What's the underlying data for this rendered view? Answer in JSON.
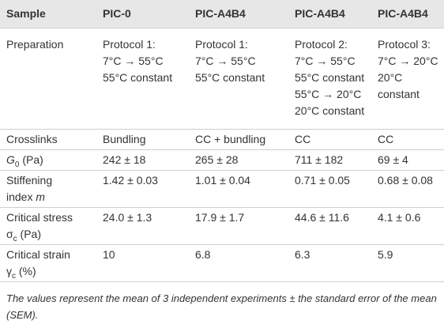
{
  "table": {
    "header": [
      "Sample",
      "PIC-0",
      "PIC-A4B4",
      "PIC-A4B4",
      "PIC-A4B4"
    ],
    "rows": [
      {
        "label": [
          "Preparation"
        ],
        "cells": [
          [
            "Protocol 1:",
            "7°C → 55°C",
            "55°C constant"
          ],
          [
            "Protocol 1:",
            "7°C → 55°C",
            "55°C constant"
          ],
          [
            "Protocol 2:",
            "7°C → 55°C",
            "55°C constant",
            "55°C → 20°C",
            "20°C constant"
          ],
          [
            "Protocol 3:",
            "7°C → 20°C",
            "20°C constant"
          ]
        ]
      },
      {
        "label": [
          "Crosslinks"
        ],
        "cells": [
          [
            "Bundling"
          ],
          [
            "CC + bundling"
          ],
          [
            "CC"
          ],
          [
            "CC"
          ]
        ]
      },
      {
        "label": [
          "G",
          "0",
          " (Pa)"
        ],
        "cells": [
          [
            "242 ± 18"
          ],
          [
            "265 ± 28"
          ],
          [
            "711 ± 182"
          ],
          [
            "69 ± 4"
          ]
        ]
      },
      {
        "label": [
          "Stiffening",
          "index ",
          "m"
        ],
        "cells": [
          [
            "1.42 ± 0.03"
          ],
          [
            "1.01 ± 0.04"
          ],
          [
            "0.71 ± 0.05"
          ],
          [
            "0.68 ± 0.08"
          ]
        ]
      },
      {
        "label": [
          "Critical stress",
          "σ",
          "c",
          " (Pa)"
        ],
        "cells": [
          [
            "24.0 ± 1.3"
          ],
          [
            "17.9 ± 1.7"
          ],
          [
            "44.6 ± 11.6"
          ],
          [
            "4.1 ± 0.6"
          ]
        ]
      },
      {
        "label": [
          "Critical strain",
          "γ",
          "c",
          " (%)"
        ],
        "cells": [
          [
            "10"
          ],
          [
            "6.8"
          ],
          [
            "6.3"
          ],
          [
            "5.9"
          ]
        ]
      }
    ],
    "footnote": "The values represent the mean of 3 independent experiments ± the standard error of the mean (SEM)."
  }
}
